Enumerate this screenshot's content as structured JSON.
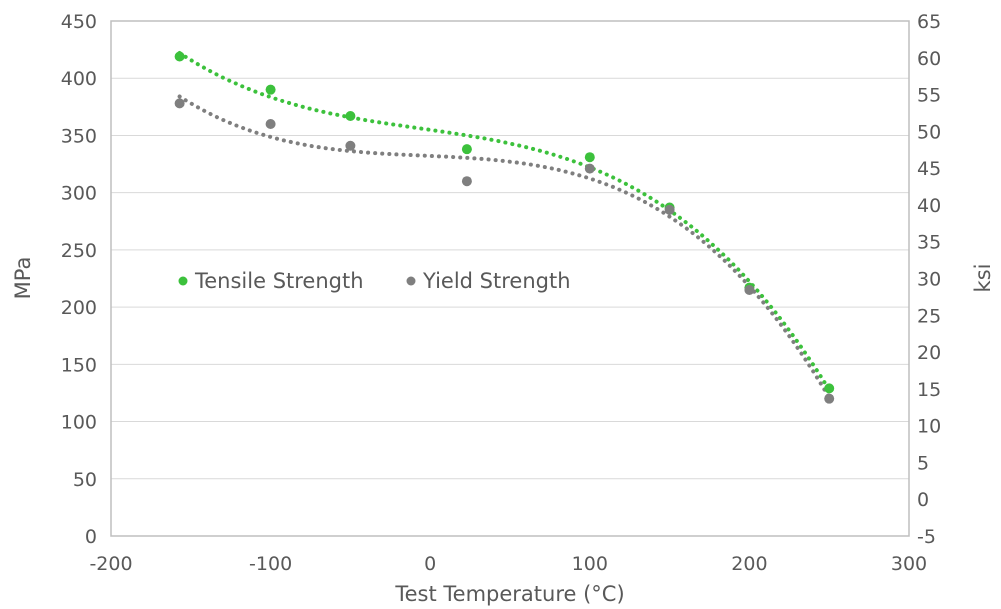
{
  "chart_data": {
    "type": "scatter",
    "title": "",
    "xlabel": "Test Temperature (°C)",
    "ylabel": "MPa",
    "y2label": "ksi",
    "xlim": [
      -200,
      300
    ],
    "ylim": [
      0,
      450
    ],
    "y2lim": [
      -5,
      65
    ],
    "x_ticks": [
      -200,
      -100,
      0,
      100,
      200,
      300
    ],
    "y_ticks": [
      0,
      50,
      100,
      150,
      200,
      250,
      300,
      350,
      400,
      450
    ],
    "y2_ticks": [
      -5,
      0,
      5,
      10,
      15,
      20,
      25,
      30,
      35,
      40,
      45,
      50,
      55,
      60,
      65
    ],
    "grid": true,
    "legend_placement": "middle-left",
    "trendline": "dotted polynomial",
    "series": [
      {
        "name": "Tensile Strength",
        "color": "#3cc13c",
        "x": [
          -157,
          -100,
          -50,
          23,
          100,
          150,
          200,
          250
        ],
        "y": [
          419,
          390,
          367,
          338,
          331,
          287,
          217,
          129
        ]
      },
      {
        "name": "Yield Strength",
        "color": "#7f7f7f",
        "x": [
          -157,
          -100,
          -50,
          23,
          100,
          150,
          200,
          250
        ],
        "y": [
          378,
          360,
          341,
          310,
          321,
          285,
          215,
          120
        ]
      }
    ]
  }
}
